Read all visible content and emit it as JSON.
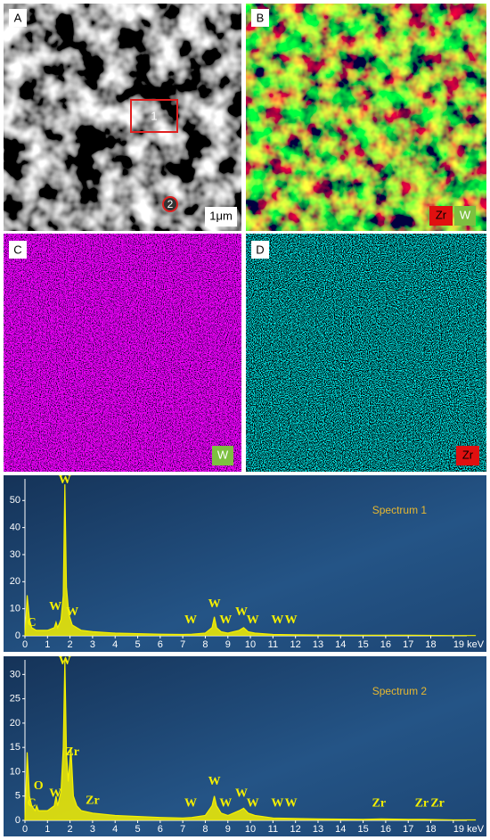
{
  "panels": [
    {
      "label": "A",
      "region_1": "1",
      "region_2": "2",
      "scale_bar": "1μm"
    },
    {
      "label": "B",
      "legend": [
        "Zr",
        "W"
      ]
    },
    {
      "label": "C",
      "legend": [
        "W"
      ]
    },
    {
      "label": "D",
      "legend": [
        "Zr"
      ]
    }
  ],
  "chart_data": [
    {
      "type": "line",
      "title": "Spectrum 1",
      "color": "#f5f000",
      "x": [
        0,
        0.1,
        0.2,
        0.3,
        0.5,
        1.0,
        1.3,
        1.38,
        1.45,
        1.6,
        1.7,
        1.77,
        1.84,
        1.95,
        2.1,
        2.5,
        3,
        4,
        5,
        6,
        7,
        7.4,
        8.0,
        8.3,
        8.4,
        8.5,
        8.7,
        9.0,
        9.5,
        9.7,
        9.9,
        10.2,
        11,
        12,
        13,
        15,
        17,
        19,
        20
      ],
      "values": [
        0,
        15,
        6,
        3,
        2,
        2,
        3,
        5,
        3,
        6,
        15,
        56,
        18,
        8,
        4,
        2,
        1.5,
        1,
        0.8,
        0.6,
        0.5,
        0.6,
        1,
        3,
        7,
        3,
        1.5,
        1,
        2,
        3,
        1.5,
        1,
        0.5,
        0.4,
        0.3,
        0.2,
        0.2,
        0.1,
        0.1
      ],
      "xlim": [
        0,
        19.6
      ],
      "ylim": [
        0,
        58
      ],
      "xticks": [
        0,
        1,
        2,
        3,
        4,
        5,
        6,
        7,
        8,
        9,
        10,
        11,
        12,
        13,
        14,
        15,
        16,
        17,
        18,
        {
          "value": 19,
          "label": "19 keV"
        }
      ],
      "yticks": [
        0,
        10,
        20,
        30,
        40,
        50
      ],
      "peak_labels": [
        {
          "text": "W",
          "x": 1.77,
          "y": 58
        },
        {
          "text": "C",
          "x": 0.3,
          "y": 2
        },
        {
          "text": "W",
          "x": 1.35,
          "y": 8
        },
        {
          "text": "W",
          "x": 2.1,
          "y": 6
        },
        {
          "text": "W",
          "x": 7.35,
          "y": 3
        },
        {
          "text": "W",
          "x": 8.4,
          "y": 9
        },
        {
          "text": "W",
          "x": 8.9,
          "y": 3
        },
        {
          "text": "W",
          "x": 9.6,
          "y": 6
        },
        {
          "text": "W",
          "x": 10.1,
          "y": 3
        },
        {
          "text": "W",
          "x": 11.2,
          "y": 3
        },
        {
          "text": "W",
          "x": 11.8,
          "y": 3
        }
      ]
    },
    {
      "type": "line",
      "title": "Spectrum 2",
      "color": "#f5f000",
      "x": [
        0,
        0.1,
        0.2,
        0.3,
        0.45,
        0.52,
        0.6,
        1.0,
        1.3,
        1.38,
        1.45,
        1.6,
        1.7,
        1.77,
        1.84,
        1.92,
        2.04,
        2.15,
        2.3,
        2.5,
        3,
        4,
        5,
        6,
        7,
        7.4,
        8.0,
        8.3,
        8.4,
        8.5,
        8.7,
        9.0,
        9.5,
        9.7,
        9.9,
        10.2,
        11,
        12,
        13,
        15,
        15.8,
        17,
        17.7,
        19,
        20
      ],
      "values": [
        0,
        14,
        5,
        3,
        2,
        3,
        2,
        2,
        3,
        5,
        3,
        6,
        15,
        33,
        14,
        8,
        15,
        5,
        3,
        2,
        1.5,
        1,
        0.8,
        0.6,
        0.5,
        0.6,
        1,
        3,
        5,
        3,
        1.5,
        1,
        2,
        2.5,
        1.5,
        1,
        0.5,
        0.4,
        0.3,
        0.2,
        0.3,
        0.2,
        0.2,
        0.1,
        0.1
      ],
      "xlim": [
        0,
        19.6
      ],
      "ylim": [
        0,
        33
      ],
      "xticks": [
        0,
        1,
        2,
        3,
        4,
        5,
        6,
        7,
        8,
        9,
        10,
        11,
        12,
        13,
        14,
        15,
        16,
        17,
        18,
        {
          "value": 19,
          "label": "19 keV"
        }
      ],
      "yticks": [
        0,
        5,
        10,
        15,
        20,
        25,
        30
      ],
      "peak_labels": [
        {
          "text": "W",
          "x": 1.77,
          "y": 33
        },
        {
          "text": "Zr",
          "x": 2.1,
          "y": 12.5
        },
        {
          "text": "C",
          "x": 0.3,
          "y": 2
        },
        {
          "text": "O",
          "x": 0.6,
          "y": 5.5
        },
        {
          "text": "W",
          "x": 1.35,
          "y": 4
        },
        {
          "text": "Zr",
          "x": 3.0,
          "y": 2.5
        },
        {
          "text": "W",
          "x": 7.35,
          "y": 2
        },
        {
          "text": "W",
          "x": 8.4,
          "y": 6.5
        },
        {
          "text": "W",
          "x": 8.9,
          "y": 2
        },
        {
          "text": "W",
          "x": 9.6,
          "y": 4
        },
        {
          "text": "W",
          "x": 10.1,
          "y": 2
        },
        {
          "text": "W",
          "x": 11.2,
          "y": 2
        },
        {
          "text": "W",
          "x": 11.8,
          "y": 2
        },
        {
          "text": "Zr",
          "x": 15.7,
          "y": 2
        },
        {
          "text": "Zr",
          "x": 17.6,
          "y": 2
        },
        {
          "text": "Zr",
          "x": 18.3,
          "y": 2
        }
      ]
    }
  ]
}
